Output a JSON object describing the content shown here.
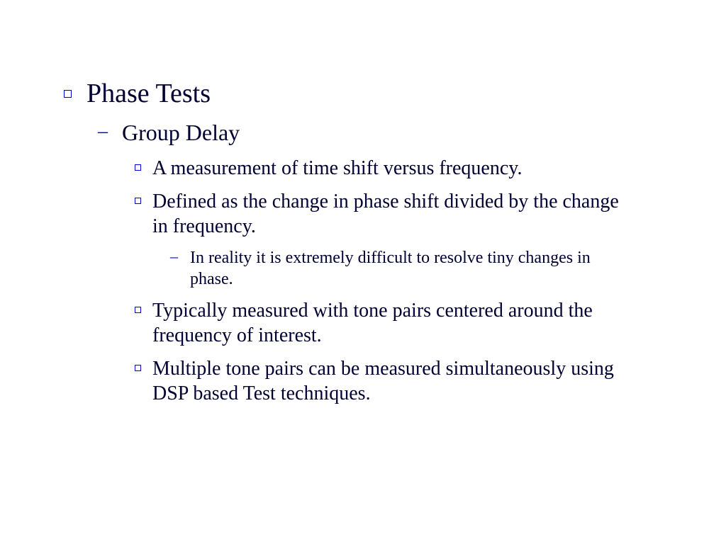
{
  "colors": {
    "text": "#000033",
    "bullet": "#0000dd",
    "background": "#ffffff"
  },
  "typography": {
    "font_family": "Times New Roman",
    "level1_fontsize": 38,
    "level2_fontsize": 32,
    "level3_fontsize": 28,
    "level4_fontsize": 24
  },
  "content": {
    "title": "Phase Tests",
    "subtitle": "Group Delay",
    "bullets": {
      "b1": "A measurement of time shift versus frequency.",
      "b2": "Defined as the change in phase shift divided by the change in frequency.",
      "b2_sub1": "In reality it is extremely difficult to resolve tiny changes in phase.",
      "b3": "Typically measured with tone pairs centered around the frequency of interest.",
      "b4": "Multiple tone pairs can be measured simultaneously using DSP based Test techniques."
    }
  }
}
